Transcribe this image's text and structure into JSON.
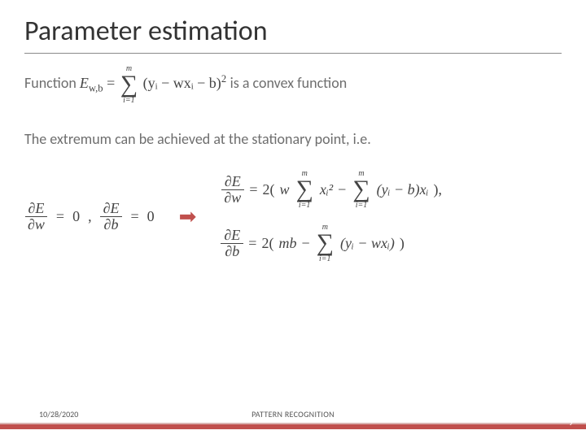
{
  "title": "Parameter estimation",
  "bullets": {
    "function_prefix": "Function ",
    "function_suffix": " is a convex function",
    "extremum": "The extremum can be achieved at the stationary point, i.e."
  },
  "formula": {
    "E_sub": "w,b",
    "sum_lower": "i=1",
    "sum_upper": "m",
    "loss_inner": "(yᵢ − wxᵢ − b)",
    "loss_sq": "2",
    "dE": "∂E",
    "dw": "∂w",
    "db": "∂b",
    "zero": "0",
    "eq": "=",
    "comma": ",",
    "two_open": "2(",
    "w": "w",
    "xi2": "xᵢ²",
    "minus": " − ",
    "yi_minus_b_xi": "(yᵢ − b)xᵢ",
    "close_paren_comma": "),",
    "mb": "mb",
    "yi_minus_wxi": "(yᵢ − wxᵢ)",
    "close_paren": ")"
  },
  "footer": {
    "date": "10/28/2020",
    "center": "PATTERN RECOGNITION",
    "page": "9"
  },
  "colors": {
    "accent": "#c0504d",
    "title_text": "#333333",
    "body_text": "#6e6e6e",
    "formula_text": "#444444",
    "rule": "#8a8a8a",
    "background": "#ffffff"
  }
}
